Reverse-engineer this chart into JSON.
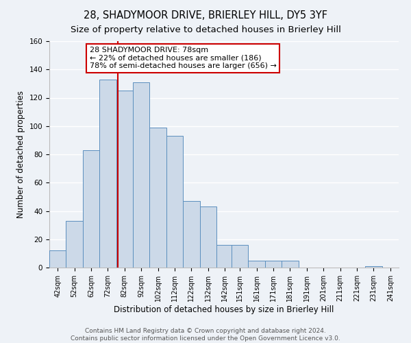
{
  "title": "28, SHADYMOOR DRIVE, BRIERLEY HILL, DY5 3YF",
  "subtitle": "Size of property relative to detached houses in Brierley Hill",
  "xlabel": "Distribution of detached houses by size in Brierley Hill",
  "ylabel": "Number of detached properties",
  "footer_line1": "Contains HM Land Registry data © Crown copyright and database right 2024.",
  "footer_line2": "Contains public sector information licensed under the Open Government Licence v3.0.",
  "bin_edges": [
    37,
    47,
    57,
    67,
    77,
    87,
    97,
    107,
    117,
    127,
    137,
    146,
    156,
    166,
    176,
    186,
    196,
    206,
    216,
    226,
    236,
    246
  ],
  "bar_heights": [
    12,
    33,
    83,
    133,
    125,
    131,
    99,
    93,
    47,
    43,
    16,
    16,
    5,
    5,
    5,
    0,
    0,
    0,
    0,
    1,
    0
  ],
  "tick_labels": [
    "42sqm",
    "52sqm",
    "62sqm",
    "72sqm",
    "82sqm",
    "92sqm",
    "102sqm",
    "112sqm",
    "122sqm",
    "132sqm",
    "142sqm",
    "151sqm",
    "161sqm",
    "171sqm",
    "181sqm",
    "191sqm",
    "201sqm",
    "211sqm",
    "221sqm",
    "231sqm",
    "241sqm"
  ],
  "tick_positions": [
    42,
    52,
    62,
    72,
    82,
    92,
    102,
    112,
    122,
    132,
    142,
    151,
    161,
    171,
    181,
    191,
    201,
    211,
    221,
    231,
    241
  ],
  "property_size": 78,
  "bar_facecolor": "#ccd9e8",
  "bar_edgecolor": "#5b8fbe",
  "redline_color": "#cc0000",
  "annotation_text": "28 SHADYMOOR DRIVE: 78sqm\n← 22% of detached houses are smaller (186)\n78% of semi-detached houses are larger (656) →",
  "annotation_box_edgecolor": "#cc0000",
  "ylim": [
    0,
    160
  ],
  "yticks": [
    0,
    20,
    40,
    60,
    80,
    100,
    120,
    140,
    160
  ],
  "background_color": "#eef2f7",
  "grid_color": "#ffffff",
  "title_fontsize": 10.5,
  "subtitle_fontsize": 9.5,
  "axis_label_fontsize": 8.5,
  "tick_fontsize": 7,
  "annotation_fontsize": 8,
  "footer_fontsize": 6.5
}
